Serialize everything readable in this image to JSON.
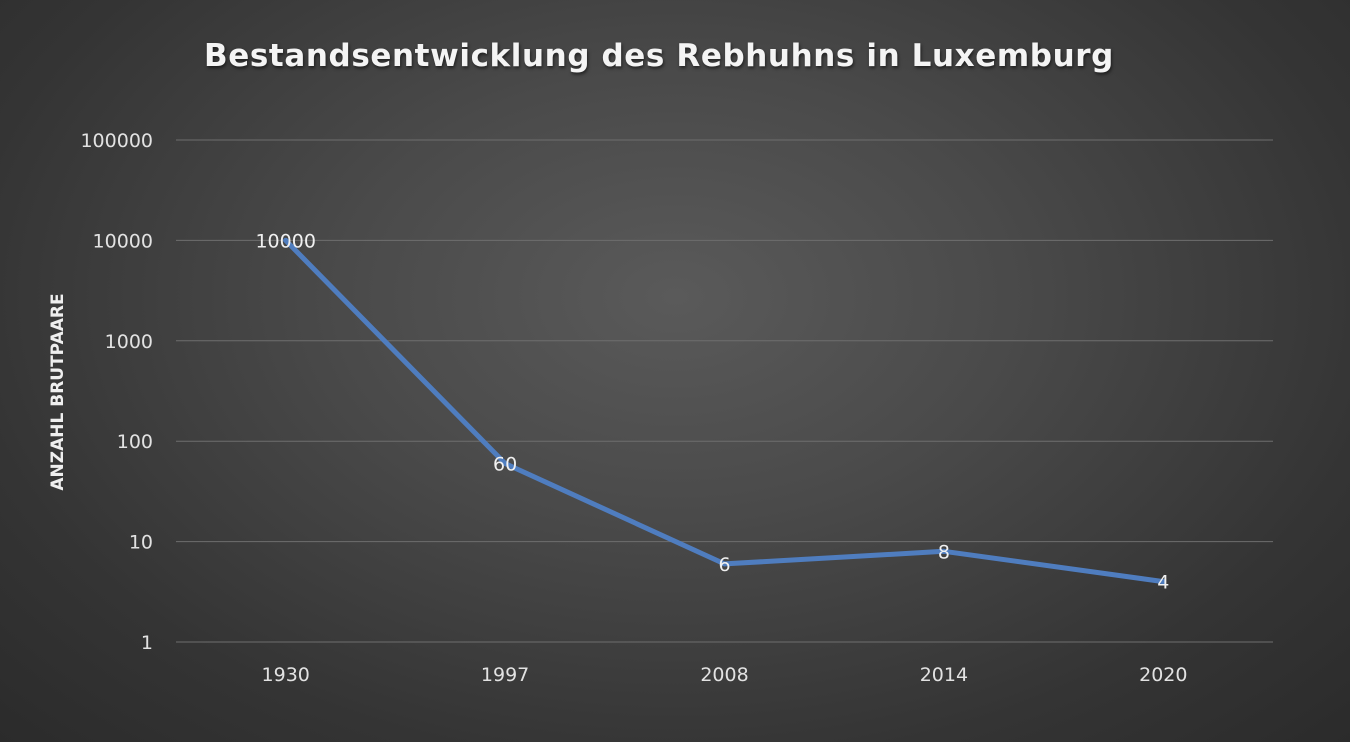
{
  "chart_data": {
    "type": "line",
    "title": "Bestandsentwicklung des Rebhuhns in Luxemburg",
    "xlabel": "",
    "ylabel": "ANZAHL BRUTPAARE",
    "y_scale": "log",
    "ylim": [
      1,
      100000
    ],
    "y_ticks": [
      "1",
      "10",
      "100",
      "1000",
      "10000",
      "100000"
    ],
    "categories": [
      "1930",
      "1997",
      "2008",
      "2014",
      "2020"
    ],
    "series": [
      {
        "values": [
          10000,
          60,
          6,
          8,
          4
        ],
        "labels": [
          "10000",
          "60",
          "6",
          "8",
          "4"
        ],
        "color": "#4f7dbf"
      }
    ],
    "grid": true,
    "legend": "none",
    "colors": {
      "background": "#454545",
      "gridline": "#6e6e6e",
      "text": "#e2e2e2"
    }
  }
}
